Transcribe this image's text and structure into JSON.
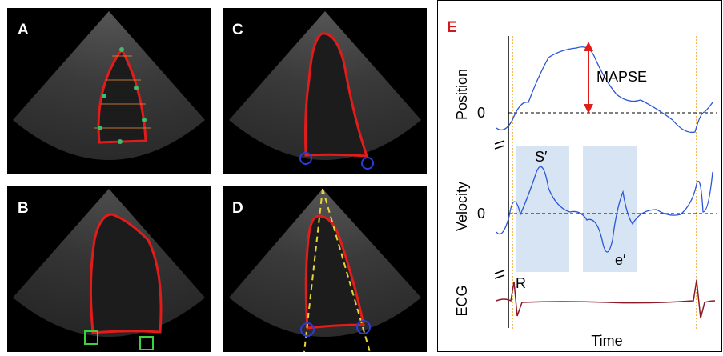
{
  "panels": {
    "a": {
      "label": "A"
    },
    "b": {
      "label": "B"
    },
    "c": {
      "label": "C"
    },
    "d": {
      "label": "D"
    }
  },
  "plot": {
    "label": "E",
    "y_labels": [
      "Position",
      "Velocity",
      "ECG"
    ],
    "zero_labels": [
      "0",
      "0"
    ],
    "x_label": "Time",
    "annotations": {
      "mapse": "MAPSE",
      "s_prime": "S′",
      "e_prime": "e′",
      "r": "R"
    }
  }
}
